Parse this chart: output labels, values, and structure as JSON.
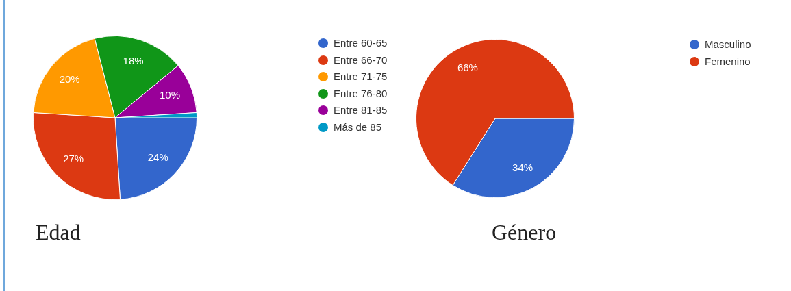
{
  "chart_data": [
    {
      "type": "pie",
      "title": "Edad",
      "categories": [
        "Entre 60-65",
        "Entre 66-70",
        "Entre 71-75",
        "Entre 76-80",
        "Entre 81-85",
        "Más de 85"
      ],
      "values": [
        24,
        27,
        20,
        18,
        10,
        1
      ],
      "colors": [
        "#3366cc",
        "#dc3912",
        "#ff9900",
        "#109618",
        "#990099",
        "#0099c6"
      ],
      "value_labels": [
        "24%",
        "27%",
        "20%",
        "18%",
        "10%",
        null
      ],
      "legend": "top right"
    },
    {
      "type": "pie",
      "title": "Género",
      "categories": [
        "Masculino",
        "Femenino"
      ],
      "values": [
        34,
        66
      ],
      "colors": [
        "#3366cc",
        "#dc3912"
      ],
      "value_labels": [
        "34%",
        "66%"
      ],
      "legend": "top right"
    }
  ]
}
